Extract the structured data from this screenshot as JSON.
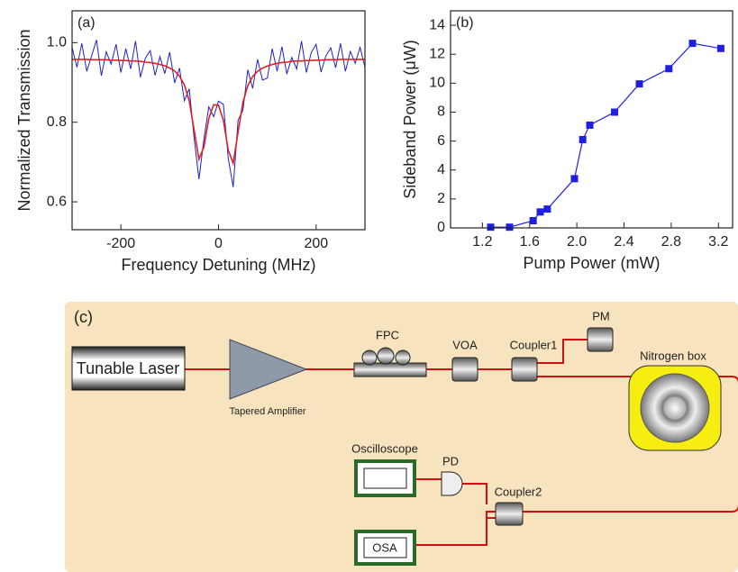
{
  "chart_data": [
    {
      "type": "line",
      "annotation": "(a)",
      "xlabel": "Frequency Detuning (MHz)",
      "ylabel": "Normalized Transmission",
      "x": [
        -300,
        -290,
        -280,
        -270,
        -260,
        -250,
        -240,
        -230,
        -220,
        -210,
        -200,
        -190,
        -180,
        -170,
        -160,
        -150,
        -140,
        -130,
        -120,
        -110,
        -100,
        -90,
        -80,
        -70,
        -60,
        -50,
        -40,
        -30,
        -20,
        -10,
        0,
        10,
        20,
        30,
        40,
        50,
        60,
        70,
        80,
        90,
        100,
        110,
        120,
        130,
        140,
        150,
        160,
        170,
        180,
        190,
        200,
        210,
        220,
        230,
        240,
        250,
        260,
        270,
        280,
        290,
        300
      ],
      "series": [
        {
          "color": "#1f1fd0",
          "width": 1,
          "values": [
            0.988,
            0.938,
            0.998,
            0.928,
            0.967,
            1.007,
            0.917,
            0.977,
            0.946,
            0.996,
            0.925,
            0.985,
            0.934,
            1.004,
            0.913,
            0.961,
            0.98,
            0.918,
            0.965,
            0.922,
            0.976,
            0.899,
            0.936,
            0.854,
            0.884,
            0.761,
            0.657,
            0.758,
            0.839,
            0.814,
            0.853,
            0.845,
            0.71,
            0.637,
            0.805,
            0.83,
            0.932,
            0.885,
            0.958,
            0.906,
            0.911,
            0.985,
            0.928,
            0.99,
            0.921,
            0.963,
            0.934,
            1.004,
            0.925,
            0.975,
            0.996,
            0.926,
            0.967,
            0.987,
            0.937,
            0.998,
            0.928,
            0.978,
            0.948,
            0.988,
            0.938
          ]
        },
        {
          "color": "#e02020",
          "width": 1.6,
          "values": [
            0.958,
            0.958,
            0.958,
            0.958,
            0.957,
            0.957,
            0.957,
            0.957,
            0.956,
            0.956,
            0.955,
            0.955,
            0.954,
            0.954,
            0.953,
            0.951,
            0.95,
            0.948,
            0.945,
            0.942,
            0.936,
            0.929,
            0.916,
            0.894,
            0.854,
            0.781,
            0.707,
            0.738,
            0.809,
            0.844,
            0.843,
            0.805,
            0.73,
            0.697,
            0.775,
            0.85,
            0.892,
            0.915,
            0.928,
            0.936,
            0.941,
            0.945,
            0.948,
            0.95,
            0.951,
            0.953,
            0.954,
            0.954,
            0.955,
            0.955,
            0.956,
            0.956,
            0.957,
            0.957,
            0.957,
            0.958,
            0.958,
            0.958,
            0.958,
            0.958,
            0.958
          ]
        }
      ],
      "xlim": [
        -300,
        300
      ],
      "xticks": [
        -200,
        0,
        200
      ],
      "ylim": [
        0.53,
        1.08
      ],
      "yticks": [
        0.6,
        0.8,
        {
          "value": 1,
          "label": "1.0"
        }
      ]
    },
    {
      "type": "line",
      "annotation": "(b)",
      "xlabel": "Pump Power (mW)",
      "ylabel": "Sideband Power (μW)",
      "x": [
        1.27,
        1.43,
        1.63,
        1.69,
        1.75,
        1.98,
        2.05,
        2.11,
        2.32,
        2.53,
        2.78,
        2.98,
        3.22
      ],
      "series": [
        {
          "color": "#1f1fe0",
          "width": 1.2,
          "marker": "square",
          "values": [
            0.05,
            0.05,
            0.5,
            1.1,
            1.3,
            3.4,
            6.1,
            7.1,
            8.0,
            9.95,
            11.0,
            12.75,
            12.4
          ]
        }
      ],
      "xlim": [
        0.93,
        3.32
      ],
      "xticks": [
        1.2,
        1.6,
        {
          "value": 2,
          "label": "2.0"
        },
        2.4,
        2.8,
        3.2
      ],
      "ylim": [
        0,
        15
      ],
      "yticks": [
        0,
        2,
        4,
        6,
        8,
        10,
        12,
        14
      ]
    }
  ],
  "diagram": {
    "label": "(c)",
    "laser": "Tunable Laser",
    "amplifier": "Tapered Amplifier",
    "fpc": "FPC",
    "voa": "VOA",
    "coupler1": "Coupler1",
    "pm": "PM",
    "nitrogen": "Nitrogen box",
    "oscilloscope": "Oscilloscope",
    "pd": "PD",
    "coupler2": "Coupler2",
    "osa": "OSA"
  }
}
